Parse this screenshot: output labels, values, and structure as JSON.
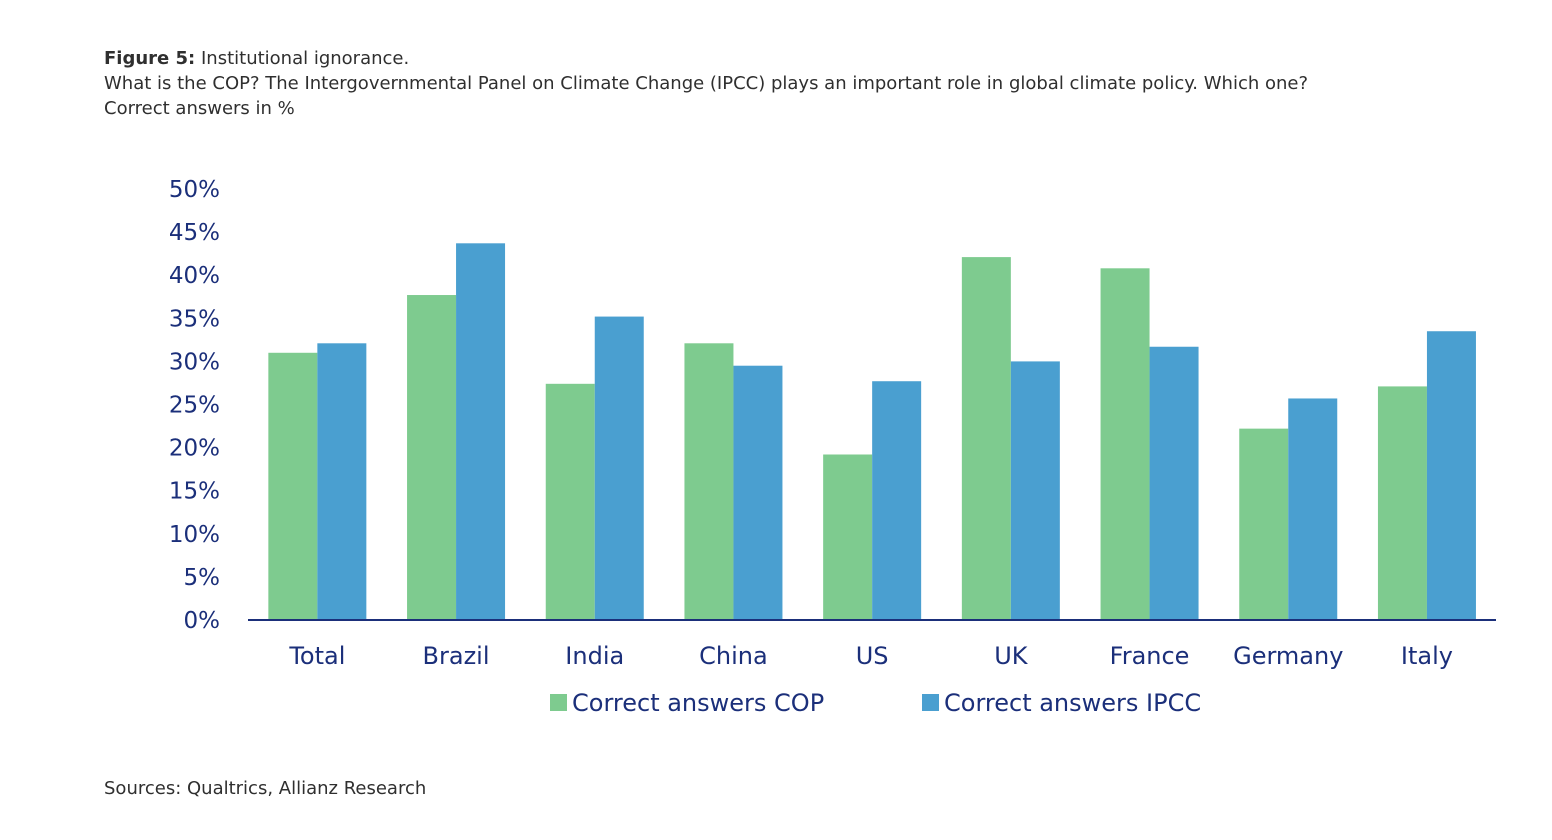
{
  "figure": {
    "label": "Figure 5:",
    "title": "Institutional ignorance.",
    "subtitle": "What is the COP? The Intergovernmental Panel on Climate Change (IPCC) plays an important role in global climate policy. Which one?",
    "unit_note": "Correct answers in %"
  },
  "source": "Sources: Qualtrics, Allianz Research",
  "colors": {
    "cop": "#7ecb8f",
    "ipcc": "#4a9fd0",
    "axis_text": "#1b2f7a",
    "axis_line": "#1b2f7a"
  },
  "chart_data": {
    "type": "bar",
    "categories": [
      "Total",
      "Brazil",
      "India",
      "China",
      "US",
      "UK",
      "France",
      "Germany",
      "Italy"
    ],
    "series": [
      {
        "name": "Correct answers COP",
        "color": "#7ecb8f",
        "values": [
          31,
          37.7,
          27.4,
          32.1,
          19.2,
          42.1,
          40.8,
          22.2,
          27.1
        ]
      },
      {
        "name": "Correct answers IPCC",
        "color": "#4a9fd0",
        "values": [
          32.1,
          43.7,
          35.2,
          29.5,
          27.7,
          30,
          31.7,
          25.7,
          33.5
        ]
      }
    ],
    "y_ticks": [
      "0%",
      "5%",
      "10%",
      "15%",
      "20%",
      "25%",
      "30%",
      "35%",
      "40%",
      "45%",
      "50%"
    ],
    "ylim": [
      0,
      50
    ],
    "grid": false,
    "legend_position": "bottom"
  }
}
